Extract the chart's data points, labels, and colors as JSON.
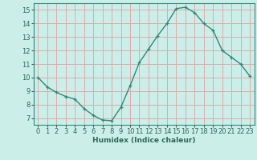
{
  "x": [
    0,
    1,
    2,
    3,
    4,
    5,
    6,
    7,
    8,
    9,
    10,
    11,
    12,
    13,
    14,
    15,
    16,
    17,
    18,
    19,
    20,
    21,
    22,
    23
  ],
  "y": [
    10.0,
    9.3,
    8.9,
    8.6,
    8.4,
    7.7,
    7.2,
    6.85,
    6.8,
    7.8,
    9.4,
    11.1,
    12.1,
    13.1,
    14.0,
    15.1,
    15.2,
    14.8,
    14.0,
    13.5,
    12.0,
    11.5,
    11.0,
    10.1
  ],
  "line_color": "#2a8a7a",
  "marker": "+",
  "marker_size": 3.5,
  "bg_color": "#cceee8",
  "grid_color": "#ddaaaa",
  "xlabel": "Humidex (Indice chaleur)",
  "ylim": [
    6.5,
    15.5
  ],
  "xlim": [
    -0.5,
    23.5
  ],
  "yticks": [
    7,
    8,
    9,
    10,
    11,
    12,
    13,
    14,
    15
  ],
  "xticks": [
    0,
    1,
    2,
    3,
    4,
    5,
    6,
    7,
    8,
    9,
    10,
    11,
    12,
    13,
    14,
    15,
    16,
    17,
    18,
    19,
    20,
    21,
    22,
    23
  ],
  "label_fontsize": 6.5,
  "tick_fontsize": 6.0,
  "tick_color": "#2a6a5a",
  "spine_color": "#2a8a7a",
  "linewidth": 1.0,
  "fig_width": 3.2,
  "fig_height": 2.0,
  "dpi": 100
}
